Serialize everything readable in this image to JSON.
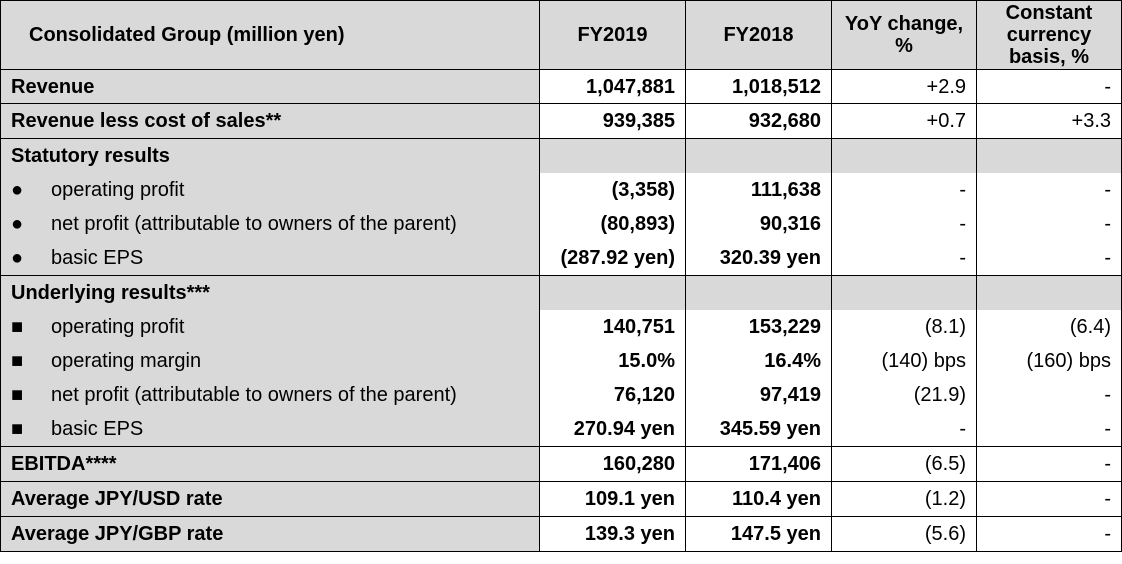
{
  "table": {
    "header": {
      "label": "Consolidated Group (million yen)",
      "col1": "FY2019",
      "col2": "FY2018",
      "col3": "YoY change, %",
      "col4": "Constant currency basis, %"
    },
    "revenue": {
      "label": "Revenue",
      "fy2019": "1,047,881",
      "fy2018": "1,018,512",
      "yoy": "+2.9",
      "cc": "-"
    },
    "revenue_less": {
      "label": "Revenue less cost of sales**",
      "fy2019": "939,385",
      "fy2018": "932,680",
      "yoy": "+0.7",
      "cc": "+3.3"
    },
    "statutory": {
      "label": "Statutory results",
      "rows": [
        {
          "bullet": "●",
          "label": "operating profit",
          "fy2019": "(3,358)",
          "fy2018": "111,638",
          "yoy": "-",
          "cc": "-"
        },
        {
          "bullet": "●",
          "label": "net profit (attributable to owners of the parent)",
          "fy2019": "(80,893)",
          "fy2018": "90,316",
          "yoy": "-",
          "cc": "-"
        },
        {
          "bullet": "●",
          "label": "basic EPS",
          "fy2019": "(287.92 yen)",
          "fy2018": "320.39 yen",
          "yoy": "-",
          "cc": "-"
        }
      ]
    },
    "underlying": {
      "label": "Underlying results***",
      "rows": [
        {
          "bullet": "■",
          "label": "operating profit",
          "fy2019": "140,751",
          "fy2018": "153,229",
          "yoy": "(8.1)",
          "cc": "(6.4)"
        },
        {
          "bullet": "■",
          "label": "operating margin",
          "fy2019": "15.0%",
          "fy2018": "16.4%",
          "yoy": "(140) bps",
          "cc": "(160) bps"
        },
        {
          "bullet": "■",
          "label": "net profit (attributable to owners of the parent)",
          "fy2019": "76,120",
          "fy2018": "97,419",
          "yoy": "(21.9)",
          "cc": "-"
        },
        {
          "bullet": "■",
          "label": "basic EPS",
          "fy2019": "270.94 yen",
          "fy2018": "345.59 yen",
          "yoy": "-",
          "cc": "-"
        }
      ]
    },
    "ebitda": {
      "label": "EBITDA****",
      "fy2019": "160,280",
      "fy2018": "171,406",
      "yoy": "(6.5)",
      "cc": "-"
    },
    "usd": {
      "label": "Average JPY/USD rate",
      "fy2019": "109.1 yen",
      "fy2018": "110.4 yen",
      "yoy": "(1.2)",
      "cc": "-"
    },
    "gbp": {
      "label": "Average JPY/GBP rate",
      "fy2019": "139.3 yen",
      "fy2018": "147.5 yen",
      "yoy": "(5.6)",
      "cc": "-"
    }
  }
}
